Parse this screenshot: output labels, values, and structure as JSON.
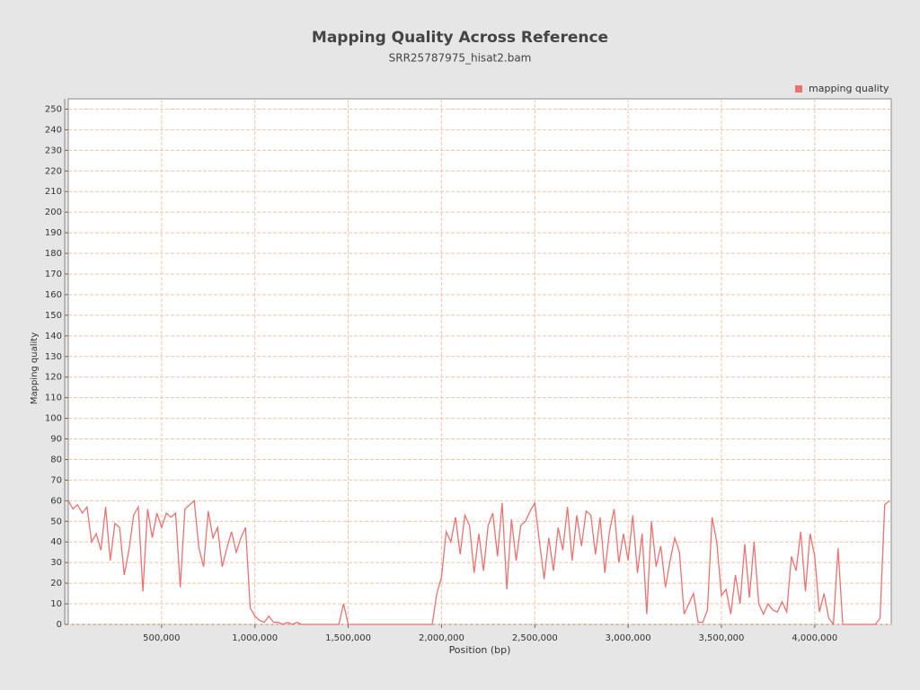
{
  "chart_data": {
    "type": "line",
    "title": "Mapping Quality Across Reference",
    "subtitle": "SRR25787975_hisat2.bam",
    "x_label": "Position (bp)",
    "y_label": "Mapping quality",
    "legend": "top-right",
    "grid": true,
    "xlim": [
      0,
      4410000
    ],
    "ylim": [
      0,
      255
    ],
    "xticks": [
      {
        "value": 500000,
        "label": "500,000"
      },
      {
        "value": 1000000,
        "label": "1,000,000"
      },
      {
        "value": 1500000,
        "label": "1,500,000"
      },
      {
        "value": 2000000,
        "label": "2,000,000"
      },
      {
        "value": 2500000,
        "label": "2,500,000"
      },
      {
        "value": 3000000,
        "label": "3,000,000"
      },
      {
        "value": 3500000,
        "label": "3,500,000"
      },
      {
        "value": 4000000,
        "label": "4,000,000"
      }
    ],
    "yticks": [
      0,
      10,
      20,
      30,
      40,
      50,
      60,
      70,
      80,
      90,
      100,
      110,
      120,
      130,
      140,
      150,
      160,
      170,
      180,
      190,
      200,
      210,
      220,
      230,
      240,
      250
    ],
    "x": [
      0,
      25000,
      50000,
      75000,
      100000,
      125000,
      150000,
      175000,
      200000,
      225000,
      250000,
      275000,
      300000,
      325000,
      350000,
      375000,
      400000,
      425000,
      450000,
      475000,
      500000,
      525000,
      550000,
      575000,
      600000,
      625000,
      650000,
      675000,
      700000,
      725000,
      750000,
      775000,
      800000,
      825000,
      850000,
      875000,
      900000,
      925000,
      950000,
      975000,
      1000000,
      1025000,
      1050000,
      1075000,
      1100000,
      1125000,
      1150000,
      1175000,
      1200000,
      1225000,
      1250000,
      1275000,
      1300000,
      1325000,
      1350000,
      1375000,
      1400000,
      1425000,
      1450000,
      1475000,
      1500000,
      1525000,
      1550000,
      1575000,
      1600000,
      1625000,
      1650000,
      1675000,
      1700000,
      1725000,
      1750000,
      1775000,
      1800000,
      1825000,
      1850000,
      1875000,
      1900000,
      1925000,
      1950000,
      1975000,
      2000000,
      2025000,
      2050000,
      2075000,
      2100000,
      2125000,
      2150000,
      2175000,
      2200000,
      2225000,
      2250000,
      2275000,
      2300000,
      2325000,
      2350000,
      2375000,
      2400000,
      2425000,
      2450000,
      2475000,
      2500000,
      2525000,
      2550000,
      2575000,
      2600000,
      2625000,
      2650000,
      2675000,
      2700000,
      2725000,
      2750000,
      2775000,
      2800000,
      2825000,
      2850000,
      2875000,
      2900000,
      2925000,
      2950000,
      2975000,
      3000000,
      3025000,
      3050000,
      3075000,
      3100000,
      3125000,
      3150000,
      3175000,
      3200000,
      3225000,
      3250000,
      3275000,
      3300000,
      3325000,
      3350000,
      3375000,
      3400000,
      3425000,
      3450000,
      3475000,
      3500000,
      3525000,
      3550000,
      3575000,
      3600000,
      3625000,
      3650000,
      3675000,
      3700000,
      3725000,
      3750000,
      3775000,
      3800000,
      3825000,
      3850000,
      3875000,
      3900000,
      3925000,
      3950000,
      3975000,
      4000000,
      4025000,
      4050000,
      4075000,
      4100000,
      4125000,
      4150000,
      4175000,
      4200000,
      4225000,
      4250000,
      4275000,
      4300000,
      4325000,
      4350000,
      4375000,
      4400000
    ],
    "series": [
      {
        "name": "mapping quality",
        "color": "#f07070",
        "values": [
          60,
          56,
          58,
          54,
          57,
          40,
          44,
          36,
          57,
          31,
          49,
          47,
          24,
          36,
          53,
          57,
          16,
          56,
          42,
          54,
          47,
          54,
          52,
          54,
          18,
          56,
          58,
          60,
          37,
          28,
          55,
          42,
          47,
          28,
          37,
          45,
          35,
          42,
          47,
          8,
          4,
          2,
          1,
          4,
          1,
          1,
          0,
          1,
          0,
          1,
          0,
          0,
          0,
          0,
          0,
          0,
          0,
          0,
          0,
          10,
          0,
          0,
          0,
          0,
          0,
          0,
          0,
          0,
          0,
          0,
          0,
          0,
          0,
          0,
          0,
          0,
          0,
          0,
          0,
          15,
          23,
          45,
          40,
          52,
          34,
          53,
          48,
          25,
          44,
          26,
          48,
          54,
          33,
          59,
          17,
          51,
          31,
          48,
          50,
          55,
          59,
          40,
          22,
          42,
          26,
          47,
          36,
          57,
          31,
          53,
          38,
          55,
          53,
          34,
          52,
          25,
          45,
          56,
          30,
          44,
          31,
          53,
          25,
          44,
          5,
          50,
          28,
          38,
          18,
          31,
          42,
          35,
          5,
          10,
          15,
          1,
          1,
          7,
          52,
          40,
          14,
          17,
          5,
          24,
          10,
          39,
          13,
          40,
          10,
          5,
          10,
          7,
          6,
          11,
          6,
          33,
          26,
          45,
          16,
          44,
          33,
          6,
          15,
          3,
          0,
          37,
          0,
          0,
          0,
          0,
          0,
          0,
          0,
          0,
          3,
          58,
          60
        ]
      }
    ]
  }
}
